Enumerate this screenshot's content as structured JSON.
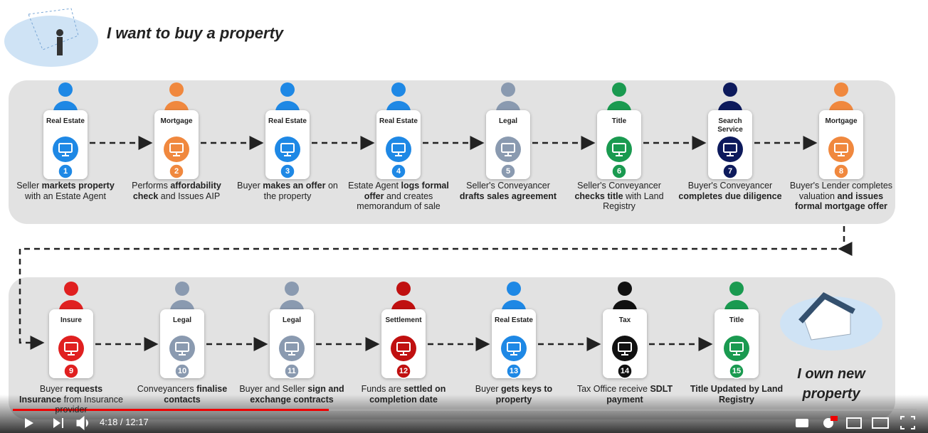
{
  "title": "I want to buy a property",
  "rows": [
    {
      "steps": [
        {
          "role": "Real Estate",
          "number": 1,
          "color": "#1e88e5",
          "description": [
            {
              "text": "Seller ",
              "bold": false
            },
            {
              "text": "markets property",
              "bold": true
            },
            {
              "text": " with an Estate Agent",
              "bold": false
            }
          ]
        },
        {
          "role": "Mortgage",
          "number": 2,
          "color": "#f0883e",
          "description": [
            {
              "text": "Performs ",
              "bold": false
            },
            {
              "text": "affordability check",
              "bold": true
            },
            {
              "text": " and Issues AIP",
              "bold": false
            }
          ]
        },
        {
          "role": "Real Estate",
          "number": 3,
          "color": "#1e88e5",
          "description": [
            {
              "text": "Buyer ",
              "bold": false
            },
            {
              "text": "makes an offer",
              "bold": true
            },
            {
              "text": " on the property",
              "bold": false
            }
          ]
        },
        {
          "role": "Real Estate",
          "number": 4,
          "color": "#1e88e5",
          "description": [
            {
              "text": "Estate Agent ",
              "bold": false
            },
            {
              "text": "logs formal offer",
              "bold": true
            },
            {
              "text": " and creates memorandum of sale",
              "bold": false
            }
          ]
        },
        {
          "role": "Legal",
          "number": 5,
          "color": "#8a9ab0",
          "description": [
            {
              "text": "Seller's Conveyancer ",
              "bold": false
            },
            {
              "text": "drafts sales agreement",
              "bold": true
            }
          ]
        },
        {
          "role": "Title",
          "number": 6,
          "color": "#1a9a50",
          "description": [
            {
              "text": "Seller's Conveyancer ",
              "bold": false
            },
            {
              "text": "checks title",
              "bold": true
            },
            {
              "text": " with Land Registry",
              "bold": false
            }
          ]
        },
        {
          "role": "Search Service",
          "number": 7,
          "color": "#0d1a5c",
          "description": [
            {
              "text": "Buyer's Conveyancer ",
              "bold": false
            },
            {
              "text": "completes due diligence",
              "bold": true
            }
          ]
        },
        {
          "role": "Mortgage",
          "number": 8,
          "color": "#f0883e",
          "description": [
            {
              "text": "Buyer's Lender completes valuation ",
              "bold": false
            },
            {
              "text": "and issues formal mortgage offer",
              "bold": true
            }
          ]
        }
      ]
    },
    {
      "steps": [
        {
          "role": "Insure",
          "number": 9,
          "color": "#e02020",
          "description": [
            {
              "text": "Buyer ",
              "bold": false
            },
            {
              "text": "requests Insurance",
              "bold": true
            },
            {
              "text": " from Insurance provider",
              "bold": false
            }
          ]
        },
        {
          "role": "Legal",
          "number": 10,
          "color": "#8a9ab0",
          "description": [
            {
              "text": "Conveyancers ",
              "bold": false
            },
            {
              "text": "finalise contacts",
              "bold": true
            }
          ]
        },
        {
          "role": "Legal",
          "number": 11,
          "color": "#8a9ab0",
          "description": [
            {
              "text": "Buyer and Seller ",
              "bold": false
            },
            {
              "text": "sign and exchange contracts",
              "bold": true
            }
          ]
        },
        {
          "role": "Settlement",
          "number": 12,
          "color": "#c01010",
          "description": [
            {
              "text": "Funds are ",
              "bold": false
            },
            {
              "text": "settled on completion date",
              "bold": true
            }
          ]
        },
        {
          "role": "Real Estate",
          "number": 13,
          "color": "#1e88e5",
          "description": [
            {
              "text": "Buyer ",
              "bold": false
            },
            {
              "text": "gets keys to property",
              "bold": true
            }
          ]
        },
        {
          "role": "Tax",
          "number": 14,
          "color": "#111111",
          "description": [
            {
              "text": "Tax Office receive ",
              "bold": false
            },
            {
              "text": "SDLT payment",
              "bold": true
            }
          ]
        },
        {
          "role": "Title",
          "number": 15,
          "color": "#1a9a50",
          "description": [
            {
              "text": "Title Updated by Land Registry",
              "bold": true
            }
          ]
        }
      ]
    }
  ],
  "end_label": "I own new property",
  "player": {
    "time": "4:18 / 12:17"
  }
}
